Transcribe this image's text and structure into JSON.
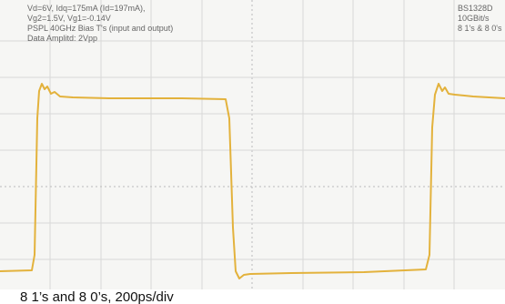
{
  "header": {
    "left_lines": [
      "Vd=6V, Idq=175mA (Id=197mA),",
      "Vg2=1.5V, Vg1=-0.14V",
      "PSPL 40GHz Bias T's (input and output)",
      "Data Amplitd: 2Vpp"
    ],
    "right_lines": [
      "BS1328D",
      "10GBit/s",
      "8 1's & 8 0's"
    ]
  },
  "caption": "8 1’s and 8 0’s, 200ps/div"
}
